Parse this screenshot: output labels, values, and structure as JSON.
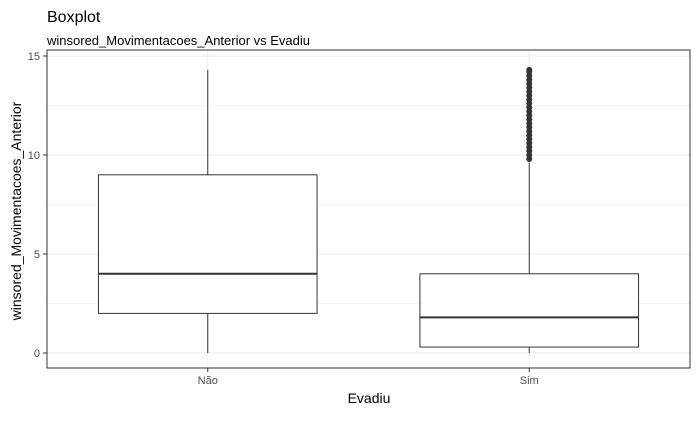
{
  "chart_data": {
    "type": "boxplot",
    "title": "Boxplot",
    "subtitle": "winsored_Movimentacoes_Anterior vs Evadiu",
    "xlabel": "Evadiu",
    "ylabel": "winsored_Movimentacoes_Anterior",
    "categories": [
      "Não",
      "Sim"
    ],
    "ylim": [
      -0.7,
      15
    ],
    "yticks": [
      0,
      5,
      10,
      15
    ],
    "grid": true,
    "boxes": [
      {
        "category": "Não",
        "min": 0,
        "q1": 2,
        "median": 4,
        "q3": 9,
        "max": 14.3,
        "outliers": []
      },
      {
        "category": "Sim",
        "min": 0,
        "q1": 0.3,
        "median": 1.8,
        "q3": 4,
        "max": 9.6,
        "outliers": [
          9.8,
          10.0,
          10.2,
          10.4,
          10.6,
          10.8,
          11.0,
          11.2,
          11.4,
          11.6,
          11.8,
          12.0,
          12.2,
          12.4,
          12.6,
          12.8,
          13.0,
          13.2,
          13.4,
          13.6,
          13.8,
          14.0,
          14.2,
          14.3
        ]
      }
    ],
    "colors": {
      "box_stroke": "#333333",
      "box_fill": "#ffffff",
      "outlier": "#333333",
      "grid": "#ebebeb",
      "panel_border": "#333333"
    }
  }
}
